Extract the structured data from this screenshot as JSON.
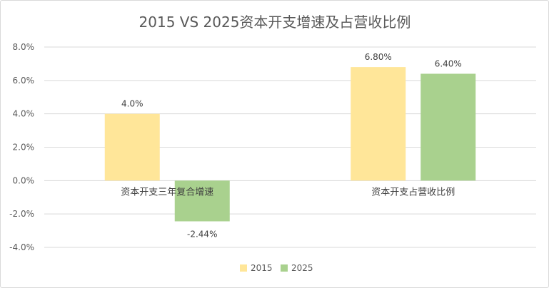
{
  "chart_data": {
    "type": "bar",
    "title": "2015 VS 2025资本开支增速及占营收比例",
    "categories": [
      "资本开支三年复合增速",
      "资本开支占营收比例"
    ],
    "series": [
      {
        "name": "2015",
        "values": [
          4.0,
          6.8
        ],
        "labels": [
          "4.0%",
          "6.80%"
        ],
        "color": "#ffe699"
      },
      {
        "name": "2025",
        "values": [
          -2.44,
          6.4
        ],
        "labels": [
          "-2.44%",
          "6.40%"
        ],
        "color": "#a9d18e"
      }
    ],
    "ylim": [
      -4.0,
      8.0
    ],
    "yticks": [
      8.0,
      6.0,
      4.0,
      2.0,
      0.0,
      -2.0,
      -4.0
    ],
    "ytick_labels": [
      "8.0%",
      "6.0%",
      "4.0%",
      "2.0%",
      "0.0%",
      "-2.0%",
      "-4.0%"
    ],
    "grid": true,
    "legend_position": "bottom"
  }
}
